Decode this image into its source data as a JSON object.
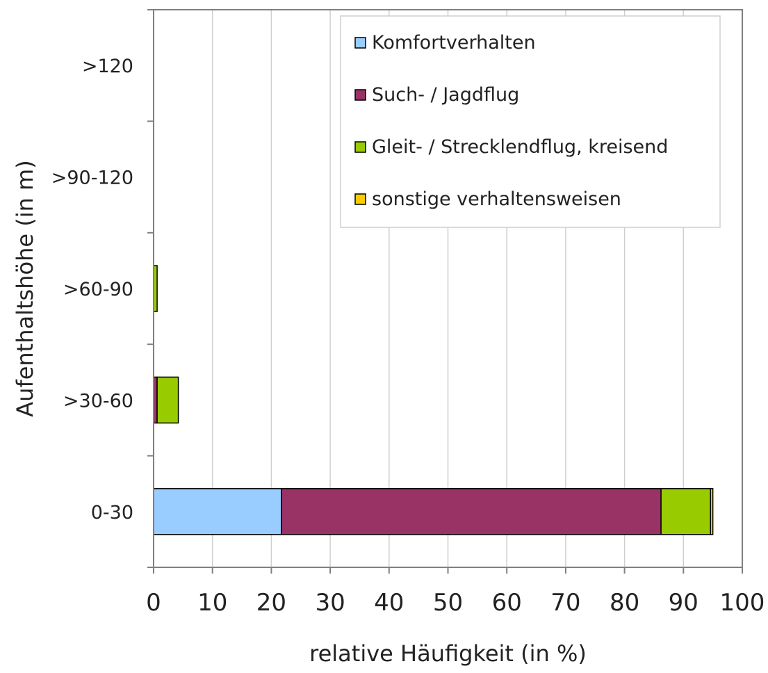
{
  "chart_data": {
    "type": "bar",
    "orientation": "horizontal",
    "stacked": true,
    "categories": [
      "0-30",
      ">30-60",
      ">60-90",
      ">90-120",
      ">120"
    ],
    "series": [
      {
        "name": "Komfortverhalten",
        "color": "#99ccff",
        "values": [
          21.7,
          0,
          0,
          0,
          0
        ]
      },
      {
        "name": "Such- / Jagdflug",
        "color": "#993366",
        "values": [
          64.5,
          0.6,
          0,
          0,
          0
        ]
      },
      {
        "name": "Gleit- / Strecklendflug, kreisend",
        "color": "#99cc00",
        "values": [
          8.4,
          3.6,
          0.6,
          0,
          0
        ]
      },
      {
        "name": "sonstige verhaltensweisen",
        "color": "#ffcc00",
        "values": [
          0.4,
          0,
          0,
          0,
          0
        ]
      }
    ],
    "xlabel": "relative Häufigkeit (in %)",
    "ylabel": "Aufenthaltshöhe (in m)",
    "xlim": [
      0,
      100
    ],
    "xticks": [
      "0",
      "10",
      "20",
      "30",
      "40",
      "50",
      "60",
      "70",
      "80",
      "90",
      "100"
    ],
    "grid": "vertical",
    "legend_position": "top-right"
  }
}
